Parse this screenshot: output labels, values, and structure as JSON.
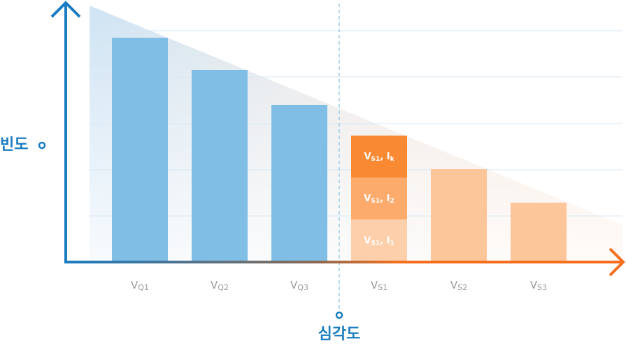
{
  "chart_data": {
    "type": "bar",
    "x_label": "심각도",
    "y_label": "빈도",
    "categories": [
      {
        "main": "V",
        "sub": "Q1"
      },
      {
        "main": "V",
        "sub": "Q2"
      },
      {
        "main": "V",
        "sub": "Q3"
      },
      {
        "main": "V",
        "sub": "S1"
      },
      {
        "main": "V",
        "sub": "S2"
      },
      {
        "main": "V",
        "sub": "S3"
      }
    ],
    "values": [
      321,
      275,
      225,
      null,
      133,
      85
    ],
    "colors": [
      "#80bee6",
      "#80bee6",
      "#80bee6",
      "#fdc59a",
      "#fdc59a",
      "#fdc59a"
    ],
    "stack_category": 3,
    "stack": [
      {
        "parts": [
          "V",
          "S1",
          ", I",
          "1"
        ],
        "value": 61,
        "color": "#fdd0ab"
      },
      {
        "parts": [
          "V",
          "S1",
          ", I",
          "2"
        ],
        "value": 60,
        "color": "#fdab6c"
      },
      {
        "parts": [
          "V",
          "S1",
          ", I",
          "k"
        ],
        "value": 60,
        "color": "#f98a33"
      }
    ],
    "ylim": [
      0,
      370
    ]
  }
}
